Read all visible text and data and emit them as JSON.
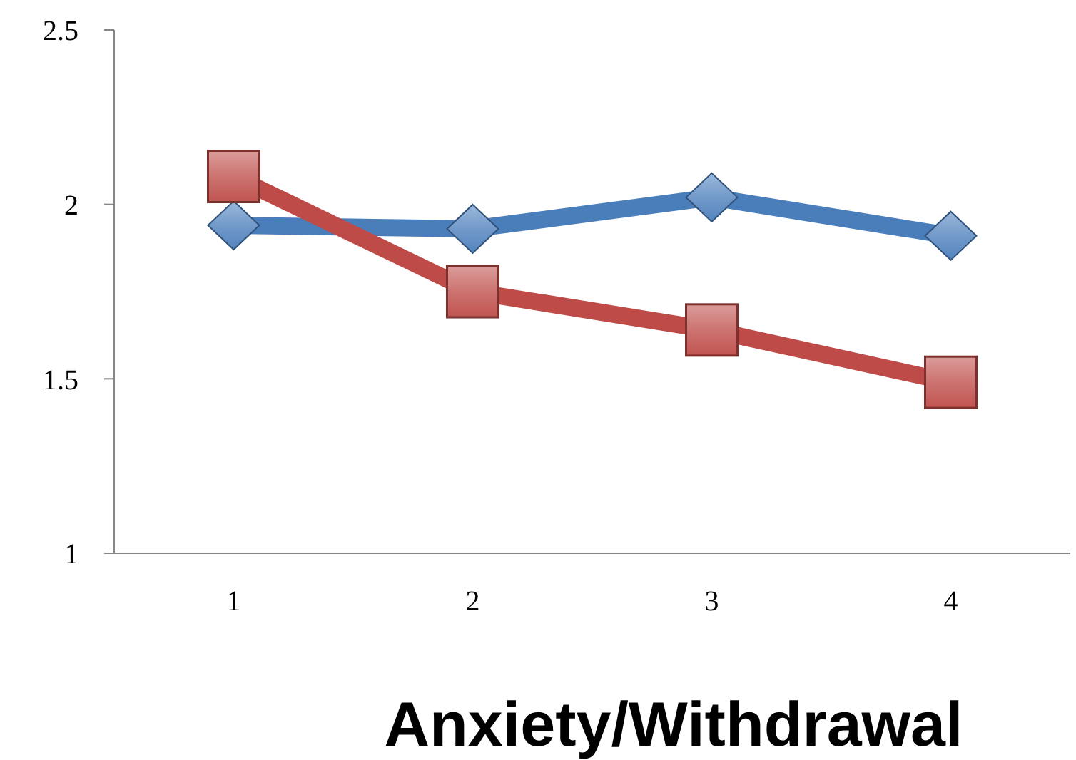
{
  "chart_data": {
    "type": "line",
    "xlabel": "Anxiety/Withdrawal",
    "categories": [
      "1",
      "2",
      "3",
      "4"
    ],
    "series": [
      {
        "color": "#4a7ebb",
        "marker": "diamond",
        "values": [
          1.94,
          1.93,
          2.02,
          1.91
        ]
      },
      {
        "color": "#be4b48",
        "marker": "square",
        "values": [
          2.08,
          1.75,
          1.64,
          1.49
        ]
      }
    ],
    "ylim": [
      1,
      2.5
    ],
    "yticks": [
      1,
      1.5,
      2,
      2.5
    ],
    "grid": false,
    "legend": false,
    "line_style": "solid"
  }
}
